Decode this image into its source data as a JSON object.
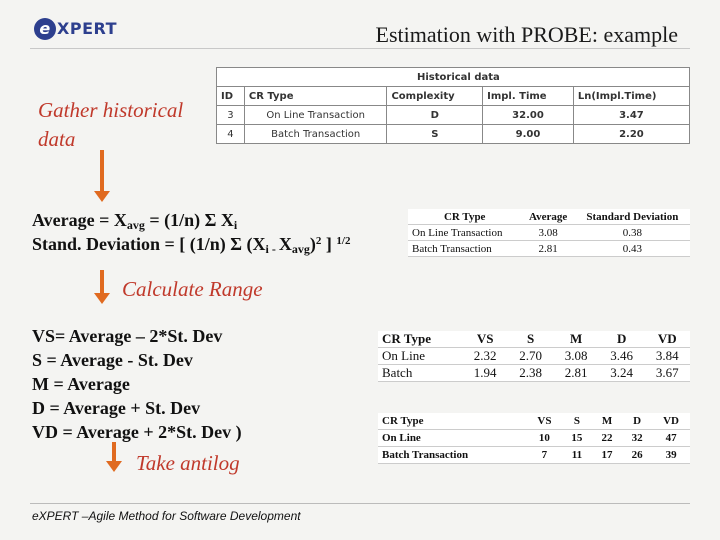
{
  "logo": {
    "letter": "e",
    "text": "XPERT"
  },
  "title": "Estimation with PROBE: example",
  "steps": {
    "gather": "Gather historical data",
    "calculate": "Calculate Range",
    "antilog": "Take antilog"
  },
  "formulas": {
    "average": {
      "pre": "Average = X",
      "sub": "avg",
      "mid": " = (1/n) Σ X",
      "sub2": "i"
    },
    "stddev": {
      "pre": "Stand. Deviation = [ (1/n) Σ (X",
      "sub": "i - ",
      "mid": "X",
      "sub2": "avg",
      "post": ")",
      "sup": "2",
      "end": " ] ",
      "sup2": "1/2"
    }
  },
  "ranges": [
    "VS= Average – 2*St. Dev",
    "S = Average - St. Dev",
    "M = Average",
    "D = Average + St. Dev",
    "VD = Average + 2*St. Dev )"
  ],
  "historical": {
    "caption": "Historical data",
    "headers": [
      "ID",
      "CR Type",
      "Complexity",
      "Impl. Time",
      "Ln(Impl.Time)"
    ],
    "rows": [
      [
        "3",
        "On Line Transaction",
        "D",
        "32.00",
        "3.47"
      ],
      [
        "4",
        "Batch Transaction",
        "S",
        "9.00",
        "2.20"
      ]
    ]
  },
  "stats": {
    "headers": [
      "CR Type",
      "Average",
      "Standard Deviation"
    ],
    "rows": [
      [
        "On Line Transaction",
        "3.08",
        "0.38"
      ],
      [
        "Batch Transaction",
        "2.81",
        "0.43"
      ]
    ]
  },
  "log_range": {
    "headers": [
      "CR Type",
      "VS",
      "S",
      "M",
      "D",
      "VD"
    ],
    "rows": [
      [
        "On Line",
        "2.32",
        "2.70",
        "3.08",
        "3.46",
        "3.84"
      ],
      [
        "Batch",
        "1.94",
        "2.38",
        "2.81",
        "3.24",
        "3.67"
      ]
    ]
  },
  "time_range": {
    "headers": [
      "CR Type",
      "VS",
      "S",
      "M",
      "D",
      "VD"
    ],
    "rows": [
      [
        "On Line",
        "10",
        "15",
        "22",
        "32",
        "47"
      ],
      [
        "Batch Transaction",
        "7",
        "11",
        "17",
        "26",
        "39"
      ]
    ]
  },
  "footer": "eXPERT –Agile Method for Software Development"
}
